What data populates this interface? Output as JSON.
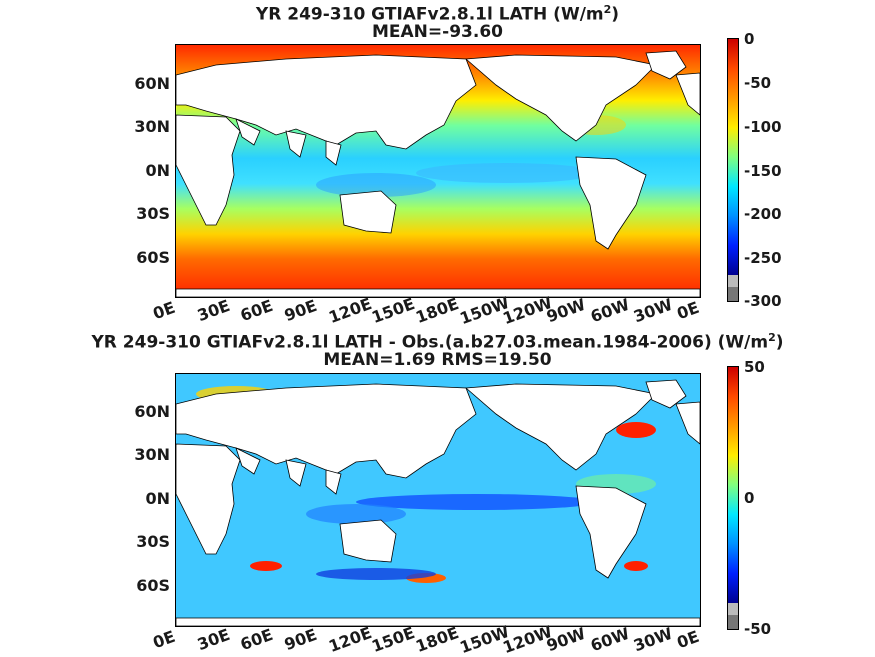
{
  "panel1": {
    "title_line1_text": "YR 249-310 GTIAFv2.8.1l  LATH (W/m",
    "title_line1_sup": "2",
    "title_line1_close": ")",
    "title_line2": "MEAN=-93.60",
    "colorbar_ticks": [
      "0",
      "-50",
      "-100",
      "-150",
      "-200",
      "-250",
      "-300"
    ],
    "colorbar_range": [
      -300,
      0
    ]
  },
  "panel2": {
    "title_line1_text": "YR 249-310 GTIAFv2.8.1l LATH - Obs.(a.b27.03.mean.1984-2006) (W/m",
    "title_line1_sup": "2",
    "title_line1_close": ")",
    "title_line2": "MEAN=1.69 RMS=19.50",
    "colorbar_ticks": [
      "50",
      "0",
      "-50"
    ],
    "colorbar_range": [
      -50,
      50
    ]
  },
  "lat_ticks": [
    "60N",
    "30N",
    "0N",
    "30S",
    "60S"
  ],
  "lon_ticks": [
    "0E",
    "30E",
    "60E",
    "90E",
    "120E",
    "150E",
    "180E",
    "150W",
    "120W",
    "90W",
    "60W",
    "30W",
    "0E"
  ],
  "colormap": [
    "#00008f",
    "#0000ff",
    "#0080ff",
    "#00ffff",
    "#80ff80",
    "#ffff00",
    "#ff8000",
    "#ff0000",
    "#800000"
  ]
}
